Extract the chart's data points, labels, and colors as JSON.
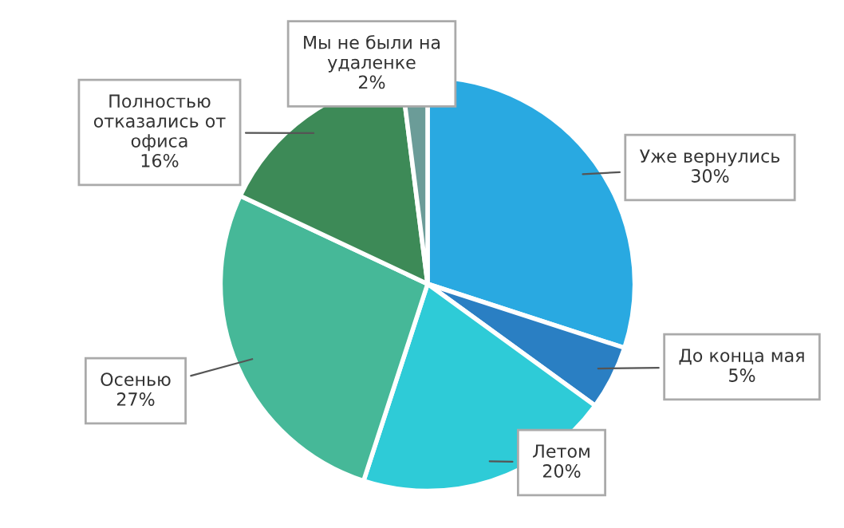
{
  "chart_data": {
    "type": "pie",
    "categories": [
      "Уже вернулись",
      "До конца мая",
      "Летом",
      "Осенью",
      "Полностью\nотказались от\nофиса",
      "Мы не были на\nудаленке"
    ],
    "values": [
      30,
      5,
      20,
      27,
      16,
      2
    ],
    "value_labels": [
      "30%",
      "5%",
      "20%",
      "27%",
      "16%",
      "2%"
    ],
    "colors": [
      "#29a9e1",
      "#2a7fc3",
      "#2ecbd7",
      "#46b898",
      "#3d8a57",
      "#6b9c98"
    ],
    "legend": false
  }
}
